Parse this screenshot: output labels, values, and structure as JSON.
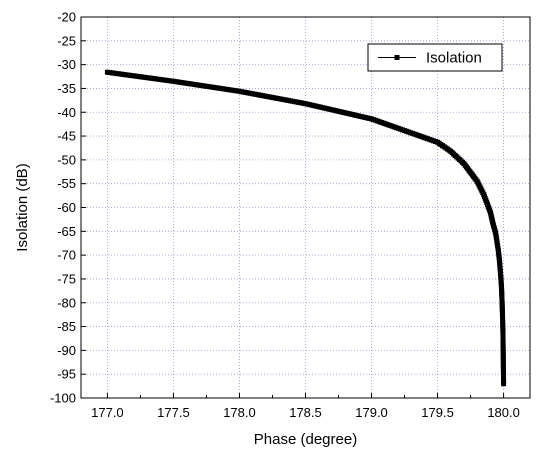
{
  "chart_data": {
    "type": "scatter",
    "title": "",
    "xlabel": "Phase (degree)",
    "ylabel": "Isolation (dB)",
    "xlim": [
      176.8,
      180.2
    ],
    "ylim": [
      -100,
      -20
    ],
    "xticks": [
      "177.0",
      "177.5",
      "178.0",
      "178.5",
      "179.0",
      "179.5",
      "180.0"
    ],
    "yticks": [
      "-20",
      "-25",
      "-30",
      "-35",
      "-40",
      "-45",
      "-50",
      "-55",
      "-60",
      "-65",
      "-70",
      "-75",
      "-80",
      "-85",
      "-90",
      "-95",
      "-100"
    ],
    "grid": true,
    "legend_position": "top-right",
    "series": [
      {
        "name": "Isolation",
        "color": "#000000",
        "marker": "square",
        "x": [
          177.0,
          177.5,
          178.0,
          178.5,
          179.0,
          179.5,
          179.6,
          179.7,
          179.8,
          179.85,
          179.9,
          179.92,
          179.94,
          179.96,
          179.97,
          179.98,
          179.985,
          179.99,
          179.995,
          180.0
        ],
        "y": [
          -31.6,
          -33.5,
          -35.6,
          -38.2,
          -41.4,
          -46.3,
          -48.2,
          -50.8,
          -54.5,
          -57.3,
          -61.0,
          -63.4,
          -65.4,
          -69.0,
          -71.5,
          -75.0,
          -77.2,
          -81.0,
          -86.0,
          -97.0
        ]
      }
    ]
  }
}
